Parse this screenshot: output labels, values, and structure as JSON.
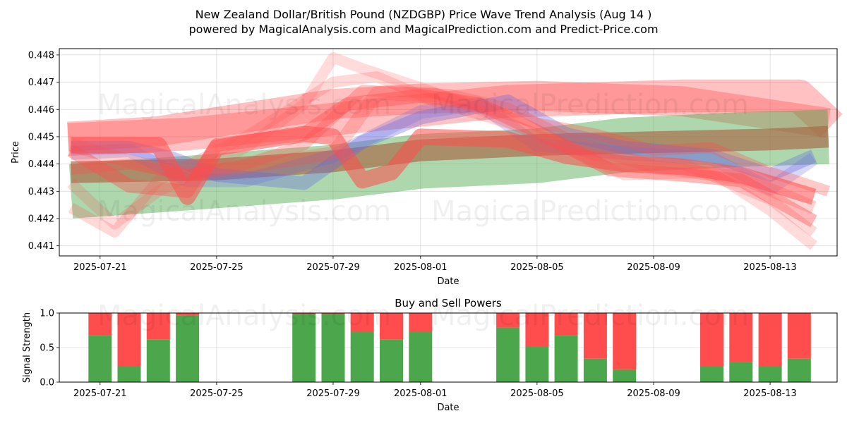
{
  "figure": {
    "title_line1": "New Zealand Dollar/British Pound (NZDGBP) Price Wave Trend Analysis (Aug 14 )",
    "title_line2": "powered by MagicalAnalysis.com and MagicalPrediction.com and Predict-Price.com",
    "watermarks": [
      "MagicalAnalysis.com",
      "MagicalPrediction.com"
    ]
  },
  "chart_data": [
    {
      "type": "area",
      "title": "",
      "xlabel": "Date",
      "ylabel": "Price",
      "xlim": [
        "2025-07-19.6",
        "2025-08-15.3"
      ],
      "ylim": [
        0.44063,
        0.44823
      ],
      "x_ticks": [
        "2025-07-21",
        "2025-07-25",
        "2025-07-29",
        "2025-08-01",
        "2025-08-05",
        "2025-08-09",
        "2025-08-13"
      ],
      "y_ticks": [
        0.441,
        0.442,
        0.443,
        0.444,
        0.445,
        0.446,
        0.447,
        0.448
      ],
      "grid": true,
      "colors": {
        "red": "#ff4d4d",
        "green": "#4ca64c",
        "blue": "#6666e0",
        "brown": "#a86644"
      },
      "series": [
        {
          "color": "red",
          "width": 0.0012,
          "opacity": 0.35,
          "points": [
            [
              "2025-07-19.9",
              0.4449
            ],
            [
              "2025-07-24",
              0.4451
            ],
            [
              "2025-08-04",
              0.4463
            ],
            [
              "2025-08-10",
              0.4465
            ],
            [
              "2025-08-14",
              0.4465
            ],
            [
              "2025-08-15.1",
              0.4454
            ]
          ]
        },
        {
          "color": "red",
          "width": 0.0011,
          "opacity": 0.35,
          "points": [
            [
              "2025-07-19.9",
              0.445
            ],
            [
              "2025-07-23",
              0.4452
            ],
            [
              "2025-07-29",
              0.4462
            ],
            [
              "2025-08-01",
              0.4464
            ],
            [
              "2025-08-05",
              0.4465
            ],
            [
              "2025-08-10",
              0.4463
            ],
            [
              "2025-08-15",
              0.4455
            ]
          ]
        },
        {
          "color": "green",
          "width": 0.002,
          "opacity": 0.45,
          "points": [
            [
              "2025-07-20",
              0.443
            ],
            [
              "2025-07-24",
              0.4433
            ],
            [
              "2025-07-29",
              0.4437
            ],
            [
              "2025-08-01",
              0.4441
            ],
            [
              "2025-08-05",
              0.4443
            ],
            [
              "2025-08-08",
              0.4447
            ],
            [
              "2025-08-12",
              0.4449
            ],
            [
              "2025-08-15",
              0.445
            ]
          ]
        },
        {
          "color": "brown",
          "width": 0.0008,
          "opacity": 0.65,
          "points": [
            [
              "2025-07-20",
              0.4437
            ],
            [
              "2025-07-25",
              0.4438
            ],
            [
              "2025-07-29",
              0.4441
            ],
            [
              "2025-08-01",
              0.4445
            ],
            [
              "2025-08-05",
              0.4447
            ],
            [
              "2025-08-09",
              0.4448
            ],
            [
              "2025-08-13",
              0.4449
            ],
            [
              "2025-08-15",
              0.445
            ]
          ]
        },
        {
          "color": "blue",
          "width": 0.0005,
          "opacity": 0.35,
          "points": [
            [
              "2025-07-20",
              0.4446
            ],
            [
              "2025-07-22",
              0.4446
            ],
            [
              "2025-07-23.5",
              0.4442
            ],
            [
              "2025-07-25",
              0.4436
            ],
            [
              "2025-07-28",
              0.4433
            ],
            [
              "2025-07-30",
              0.4448
            ],
            [
              "2025-08-01",
              0.4457
            ],
            [
              "2025-08-04",
              0.4463
            ],
            [
              "2025-08-06",
              0.4451
            ],
            [
              "2025-08-08",
              0.4446
            ],
            [
              "2025-08-11",
              0.4443
            ],
            [
              "2025-08-13",
              0.4436
            ],
            [
              "2025-08-14.5",
              0.4443
            ]
          ]
        },
        {
          "color": "blue",
          "width": 0.0005,
          "opacity": 0.25,
          "points": [
            [
              "2025-07-20",
              0.4444
            ],
            [
              "2025-07-22",
              0.4445
            ],
            [
              "2025-07-24",
              0.4434
            ],
            [
              "2025-07-26",
              0.4434
            ],
            [
              "2025-07-29",
              0.4443
            ],
            [
              "2025-08-01",
              0.4459
            ],
            [
              "2025-08-03",
              0.4462
            ],
            [
              "2025-08-05",
              0.4447
            ],
            [
              "2025-08-08",
              0.4444
            ],
            [
              "2025-08-11",
              0.4442
            ],
            [
              "2025-08-13",
              0.4431
            ],
            [
              "2025-08-14.5",
              0.4442
            ]
          ]
        },
        {
          "color": "red",
          "width": 0.0004,
          "opacity": 0.2,
          "points": [
            [
              "2025-07-20",
              0.4433
            ],
            [
              "2025-07-21.5",
              0.4418
            ],
            [
              "2025-07-23",
              0.443
            ],
            [
              "2025-07-26",
              0.4446
            ],
            [
              "2025-07-28",
              0.4462
            ],
            [
              "2025-07-29",
              0.4479
            ],
            [
              "2025-07-30",
              0.4475
            ],
            [
              "2025-08-01",
              0.4468
            ],
            [
              "2025-08-03",
              0.446
            ],
            [
              "2025-08-06",
              0.4446
            ],
            [
              "2025-08-08",
              0.4436
            ],
            [
              "2025-08-11",
              0.4437
            ],
            [
              "2025-08-13",
              0.4423
            ],
            [
              "2025-08-14.5",
              0.441
            ]
          ]
        },
        {
          "color": "red",
          "width": 0.0004,
          "opacity": 0.22,
          "points": [
            [
              "2025-07-20",
              0.4424
            ],
            [
              "2025-07-21.5",
              0.4415
            ],
            [
              "2025-07-23",
              0.4434
            ],
            [
              "2025-07-26",
              0.445
            ],
            [
              "2025-07-29",
              0.447
            ],
            [
              "2025-07-30.5",
              0.4472
            ],
            [
              "2025-08-01.5",
              0.4463
            ],
            [
              "2025-08-04",
              0.4455
            ],
            [
              "2025-08-07",
              0.4443
            ],
            [
              "2025-08-10",
              0.444
            ],
            [
              "2025-08-13",
              0.4427
            ],
            [
              "2025-08-14.5",
              0.4415
            ]
          ]
        },
        {
          "color": "red",
          "width": 0.0005,
          "opacity": 0.25,
          "points": [
            [
              "2025-07-20",
              0.4447
            ],
            [
              "2025-07-22",
              0.4441
            ],
            [
              "2025-07-24",
              0.4436
            ],
            [
              "2025-07-26",
              0.4439
            ],
            [
              "2025-07-29",
              0.4444
            ],
            [
              "2025-07-30.5",
              0.4466
            ],
            [
              "2025-08-02",
              0.4465
            ],
            [
              "2025-08-04",
              0.446
            ],
            [
              "2025-08-06",
              0.4449
            ],
            [
              "2025-08-09",
              0.4439
            ],
            [
              "2025-08-12",
              0.4435
            ],
            [
              "2025-08-14.5",
              0.4424
            ]
          ]
        },
        {
          "color": "red",
          "width": 0.0006,
          "opacity": 0.55,
          "points": [
            [
              "2025-07-20",
              0.4447
            ],
            [
              "2025-07-21.5",
              0.4447
            ],
            [
              "2025-07-23",
              0.4447
            ],
            [
              "2025-07-24",
              0.4428
            ],
            [
              "2025-07-25",
              0.4446
            ],
            [
              "2025-07-28",
              0.4451
            ],
            [
              "2025-07-29",
              0.445
            ],
            [
              "2025-07-30",
              0.4434
            ],
            [
              "2025-07-31",
              0.4437
            ],
            [
              "2025-08-01",
              0.445
            ],
            [
              "2025-08-04",
              0.4449
            ],
            [
              "2025-08-06",
              0.4443
            ],
            [
              "2025-08-08",
              0.444
            ],
            [
              "2025-08-10",
              0.4439
            ],
            [
              "2025-08-12",
              0.4436
            ],
            [
              "2025-08-14.5",
              0.4428
            ]
          ]
        },
        {
          "color": "red",
          "width": 0.0005,
          "opacity": 0.4,
          "points": [
            [
              "2025-07-20",
              0.4445
            ],
            [
              "2025-07-22",
              0.4432
            ],
            [
              "2025-07-24",
              0.443
            ],
            [
              "2025-07-25",
              0.4447
            ],
            [
              "2025-07-28",
              0.4451
            ],
            [
              "2025-07-29.5",
              0.4462
            ],
            [
              "2025-08-01",
              0.4465
            ],
            [
              "2025-08-03",
              0.4462
            ],
            [
              "2025-08-05",
              0.4452
            ],
            [
              "2025-08-07.5",
              0.4438
            ],
            [
              "2025-08-10",
              0.4436
            ],
            [
              "2025-08-12",
              0.4434
            ],
            [
              "2025-08-14.5",
              0.4419
            ]
          ]
        },
        {
          "color": "red",
          "width": 0.0004,
          "opacity": 0.3,
          "points": [
            [
              "2025-07-20",
              0.4438
            ],
            [
              "2025-07-22",
              0.444
            ],
            [
              "2025-07-24",
              0.4436
            ],
            [
              "2025-07-26",
              0.444
            ],
            [
              "2025-07-28",
              0.4447
            ],
            [
              "2025-07-30",
              0.4467
            ],
            [
              "2025-08-01.5",
              0.4466
            ],
            [
              "2025-08-05",
              0.4455
            ],
            [
              "2025-08-07",
              0.4451
            ],
            [
              "2025-08-09",
              0.4445
            ],
            [
              "2025-08-11",
              0.4446
            ],
            [
              "2025-08-13",
              0.4437
            ],
            [
              "2025-08-15",
              0.443
            ]
          ]
        }
      ]
    },
    {
      "type": "bar",
      "title": "Buy and Sell Powers",
      "xlabel": "Date",
      "ylabel": "Signal Strength",
      "xlim": [
        "2025-07-19.6",
        "2025-08-15.3"
      ],
      "ylim": [
        0,
        1
      ],
      "x_ticks": [
        "2025-07-21",
        "2025-07-25",
        "2025-07-29",
        "2025-08-01",
        "2025-08-05",
        "2025-08-09",
        "2025-08-13"
      ],
      "y_ticks": [
        0.0,
        0.5,
        1.0
      ],
      "grid": true,
      "colors": {
        "buy": "#4ca64c",
        "sell": "#ff4d4d"
      },
      "x": [
        "2025-07-21",
        "2025-07-22",
        "2025-07-23",
        "2025-07-24",
        "2025-07-28",
        "2025-07-29",
        "2025-07-30",
        "2025-07-31",
        "2025-08-01",
        "2025-08-04",
        "2025-08-05",
        "2025-08-06",
        "2025-08-07",
        "2025-08-08",
        "2025-08-11",
        "2025-08-12",
        "2025-08-13",
        "2025-08-14"
      ],
      "buy_values": [
        0.68,
        0.23,
        0.62,
        0.96,
        0.98,
        0.98,
        0.73,
        0.62,
        0.73,
        0.79,
        0.51,
        0.68,
        0.34,
        0.18,
        0.23,
        0.29,
        0.23,
        0.34
      ]
    }
  ]
}
